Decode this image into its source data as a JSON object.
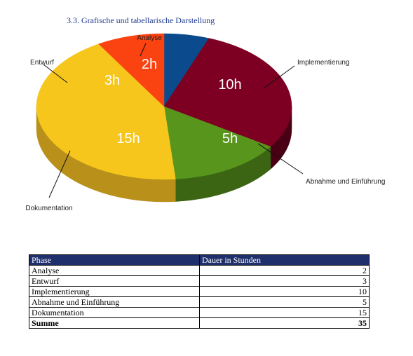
{
  "heading": "3.3. Grafische und tabellarische Darstellung",
  "chart_data": {
    "type": "pie",
    "categories": [
      "Analyse",
      "Implementierung",
      "Abnahme und Einführung",
      "Dokumentation",
      "Entwurf"
    ],
    "values": [
      2,
      10,
      5,
      15,
      3
    ],
    "value_labels": [
      "2h",
      "10h",
      "5h",
      "15h",
      "3h"
    ],
    "colors": [
      "#0b4a8c",
      "#7d0022",
      "#58951c",
      "#f6c61c",
      "#fb4211"
    ],
    "side_colors": [
      "#072f5a",
      "#4a0014",
      "#3b6512",
      "#b9901a",
      "#b5300c"
    ],
    "start_angle_deg": -90,
    "legend": "callout labels outside pie"
  },
  "table": {
    "headers": [
      "Phase",
      "Dauer in Stunden"
    ],
    "rows": [
      [
        "Analyse",
        "2"
      ],
      [
        "Entwurf",
        "3"
      ],
      [
        "Implementierung",
        "10"
      ],
      [
        "Abnahme und Einführung",
        "5"
      ],
      [
        "Dokumentation",
        "15"
      ]
    ],
    "total": [
      "Summe",
      "35"
    ]
  }
}
